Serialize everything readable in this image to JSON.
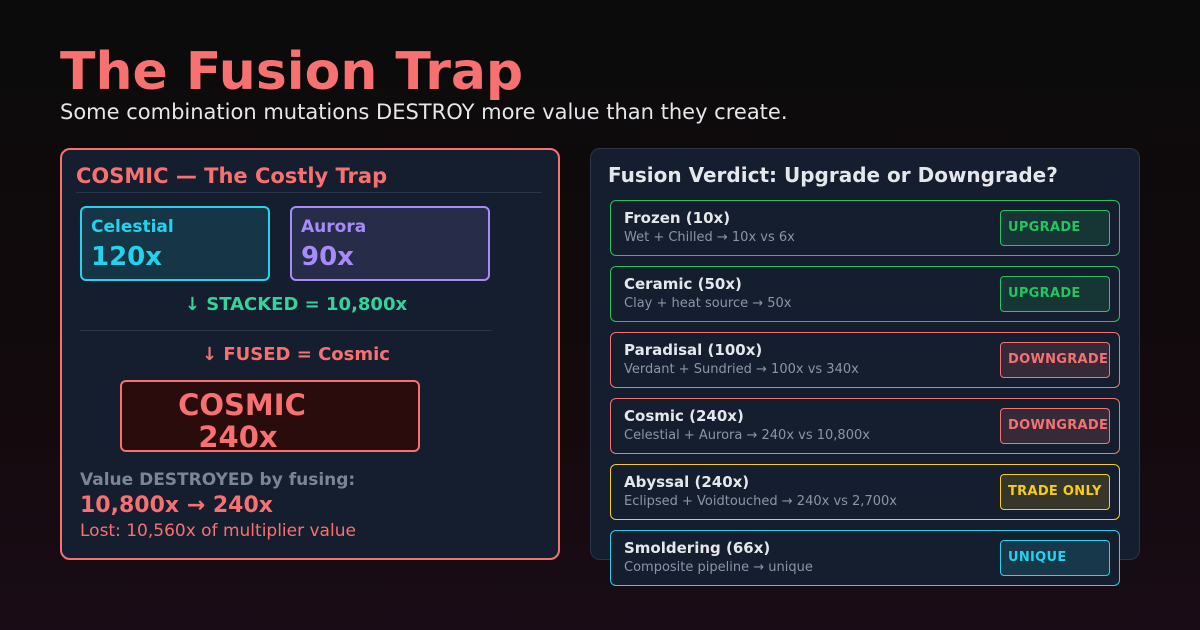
{
  "header": {
    "title": "The Fusion Trap",
    "subtitle": "Some combination mutations DESTROY more value than they create."
  },
  "left_panel": {
    "heading": "COSMIC  — The Costly Trap",
    "inputs": [
      {
        "label": "Celestial",
        "value": "120x",
        "color": "#22d3ee"
      },
      {
        "label": "Aurora",
        "value": "90x",
        "color": "#a78bfa"
      }
    ],
    "stacked": "↓  STACKED  =  10,800x",
    "fused": "↓  FUSED  =  Cosmic",
    "result": {
      "label": "COSMIC",
      "value": "240x"
    },
    "destroyed_label": "Value DESTROYED by fusing:",
    "destroyed_value": "10,800x  →  240x",
    "lost": "Lost: 10,560x of multiplier value"
  },
  "right_panel": {
    "title": "Fusion Verdict: Upgrade or Downgrade?",
    "rows": [
      {
        "name": "Frozen (10x)",
        "desc": "Wet + Chilled  →  10x vs 6x",
        "verdict": "UPGRADE",
        "color": "#22c55e"
      },
      {
        "name": "Ceramic (50x)",
        "desc": "Clay + heat source  →  50x",
        "verdict": "UPGRADE",
        "color": "#22c55e"
      },
      {
        "name": "Paradisal (100x)",
        "desc": "Verdant + Sundried  →  100x vs 340x",
        "verdict": "DOWNGRADE",
        "color": "#f87171"
      },
      {
        "name": "Cosmic (240x)",
        "desc": "Celestial + Aurora  →  240x vs 10,800x",
        "verdict": "DOWNGRADE",
        "color": "#f87171"
      },
      {
        "name": "Abyssal (240x)",
        "desc": "Eclipsed + Voidtouched  →  240x vs 2,700x",
        "verdict": "TRADE ONLY",
        "color": "#facc15"
      },
      {
        "name": "Smoldering (66x)",
        "desc": "Composite pipeline  →  unique",
        "verdict": "UNIQUE",
        "color": "#22d3ee"
      }
    ]
  }
}
